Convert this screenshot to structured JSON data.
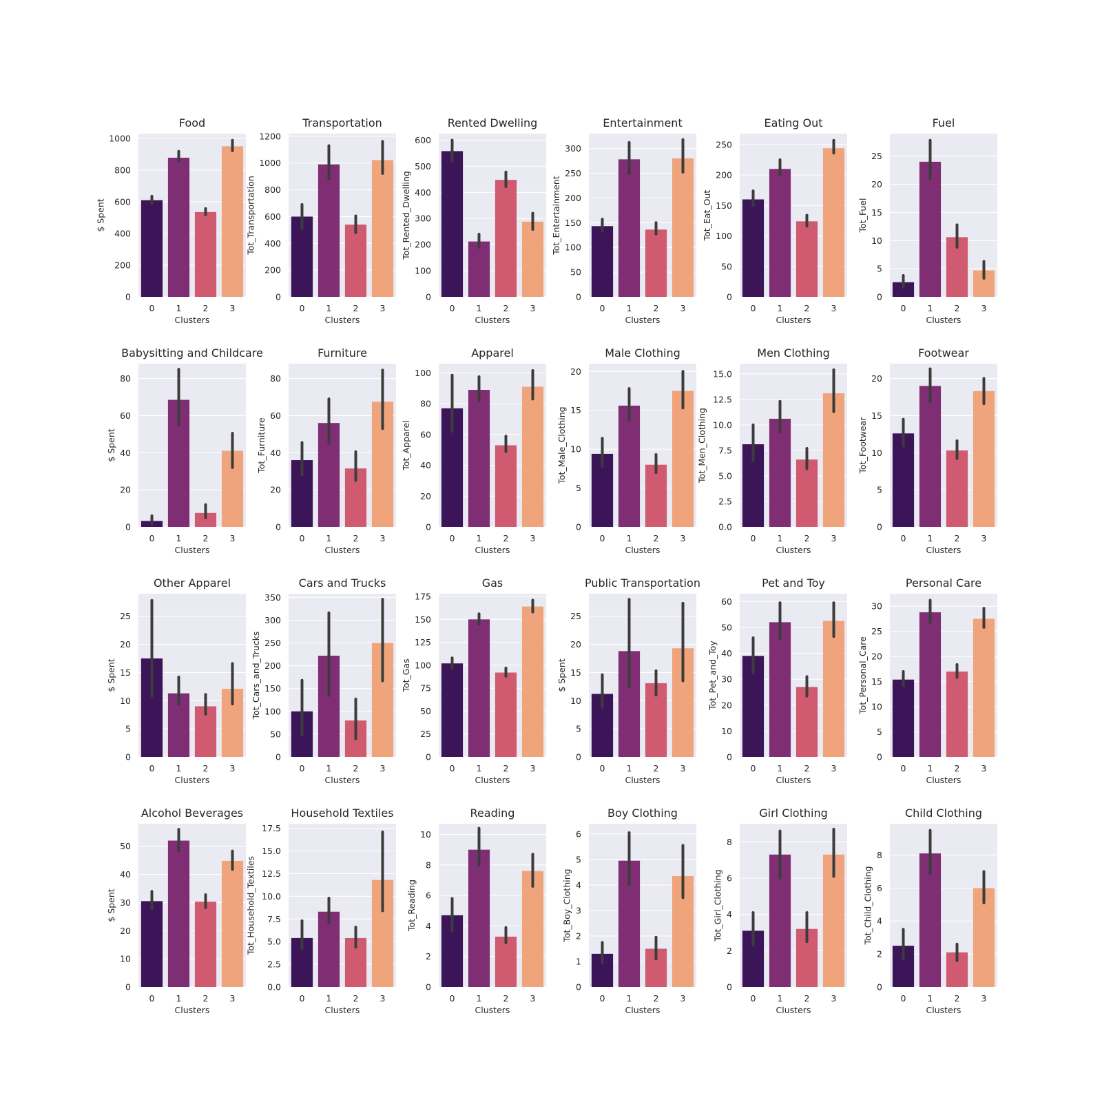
{
  "colors": [
    "#3b1558",
    "#7f2e73",
    "#d05a70",
    "#efa47b"
  ],
  "chart_data": [
    {
      "type": "bar",
      "title": "Food",
      "xlabel": "Clusters",
      "ylabel": "$ Spent",
      "categories": [
        "0",
        "1",
        "2",
        "3"
      ],
      "values": [
        610,
        878,
        535,
        950
      ],
      "errors": [
        [
          588,
          635
        ],
        [
          858,
          918
        ],
        [
          518,
          557
        ],
        [
          922,
          988
        ]
      ],
      "ylim": [
        0,
        1030
      ],
      "yticks": [
        "0",
        "200",
        "400",
        "600",
        "800",
        "1000"
      ]
    },
    {
      "type": "bar",
      "title": "Transportation",
      "xlabel": "Clusters",
      "ylabel": "Tot_Transportation",
      "categories": [
        "0",
        "1",
        "2",
        "3"
      ],
      "values": [
        600,
        990,
        540,
        1022
      ],
      "errors": [
        [
          508,
          690
        ],
        [
          882,
          1130
        ],
        [
          480,
          605
        ],
        [
          922,
          1162
        ]
      ],
      "ylim": [
        0,
        1220
      ],
      "yticks": [
        "0",
        "200",
        "400",
        "600",
        "800",
        "1000",
        "1200"
      ]
    },
    {
      "type": "bar",
      "title": "Rented Dwelling",
      "xlabel": "Clusters",
      "ylabel": "Tot_Rented_Dwelling",
      "categories": [
        "0",
        "1",
        "2",
        "3"
      ],
      "values": [
        558,
        212,
        448,
        288
      ],
      "errors": [
        [
          520,
          600
        ],
        [
          190,
          240
        ],
        [
          422,
          478
        ],
        [
          258,
          320
        ]
      ],
      "ylim": [
        0,
        625
      ],
      "yticks": [
        "0",
        "100",
        "200",
        "300",
        "400",
        "500",
        "600"
      ]
    },
    {
      "type": "bar",
      "title": "Entertainment",
      "xlabel": "Clusters",
      "ylabel": "Tot_Entertainment",
      "categories": [
        "0",
        "1",
        "2",
        "3"
      ],
      "values": [
        143,
        278,
        136,
        280
      ],
      "errors": [
        [
          133,
          157
        ],
        [
          250,
          312
        ],
        [
          127,
          150
        ],
        [
          252,
          318
        ]
      ],
      "ylim": [
        0,
        330
      ],
      "yticks": [
        "0",
        "50",
        "100",
        "150",
        "200",
        "250",
        "300"
      ]
    },
    {
      "type": "bar",
      "title": "Eating Out",
      "xlabel": "Clusters",
      "ylabel": "Tot_Eat_Out",
      "categories": [
        "0",
        "1",
        "2",
        "3"
      ],
      "values": [
        160,
        210,
        124,
        244
      ],
      "errors": [
        [
          150,
          174
        ],
        [
          200,
          225
        ],
        [
          116,
          134
        ],
        [
          236,
          257
        ]
      ],
      "ylim": [
        0,
        268
      ],
      "yticks": [
        "0",
        "50",
        "100",
        "150",
        "200",
        "250"
      ]
    },
    {
      "type": "bar",
      "title": "Fuel",
      "xlabel": "Clusters",
      "ylabel": "Tot_Fuel",
      "categories": [
        "0",
        "1",
        "2",
        "3"
      ],
      "values": [
        2.6,
        24.0,
        10.6,
        4.7
      ],
      "errors": [
        [
          1.7,
          3.8
        ],
        [
          21.0,
          27.8
        ],
        [
          8.8,
          12.8
        ],
        [
          3.3,
          6.3
        ]
      ],
      "ylim": [
        0,
        29
      ],
      "yticks": [
        "0",
        "5",
        "10",
        "15",
        "20",
        "25"
      ]
    },
    {
      "type": "bar",
      "title": "Babysitting and Childcare",
      "xlabel": "Clusters",
      "ylabel": "$ Spent",
      "categories": [
        "0",
        "1",
        "2",
        "3"
      ],
      "values": [
        3.2,
        68.5,
        7.5,
        41
      ],
      "errors": [
        [
          1.5,
          6.0
        ],
        [
          55,
          85
        ],
        [
          5,
          12
        ],
        [
          32,
          50.5
        ]
      ],
      "ylim": [
        0,
        88
      ],
      "yticks": [
        "0",
        "20",
        "40",
        "60",
        "80"
      ]
    },
    {
      "type": "bar",
      "title": "Furniture",
      "xlabel": "Clusters",
      "ylabel": "Tot_Furniture",
      "categories": [
        "0",
        "1",
        "2",
        "3"
      ],
      "values": [
        36,
        56,
        31.5,
        67.5
      ],
      "errors": [
        [
          28,
          45.5
        ],
        [
          45,
          69
        ],
        [
          25,
          40.5
        ],
        [
          53,
          84.5
        ]
      ],
      "ylim": [
        0,
        88
      ],
      "yticks": [
        "0",
        "20",
        "40",
        "60",
        "80"
      ]
    },
    {
      "type": "bar",
      "title": "Apparel",
      "xlabel": "Clusters",
      "ylabel": "Tot_Apparel",
      "categories": [
        "0",
        "1",
        "2",
        "3"
      ],
      "values": [
        77,
        89,
        53,
        91
      ],
      "errors": [
        [
          62,
          98.5
        ],
        [
          82,
          97.5
        ],
        [
          49,
          59
        ],
        [
          83,
          101.5
        ]
      ],
      "ylim": [
        0,
        106
      ],
      "yticks": [
        "0",
        "20",
        "40",
        "60",
        "80",
        "100"
      ]
    },
    {
      "type": "bar",
      "title": "Male Clothing",
      "xlabel": "Clusters",
      "ylabel": "Tot_Male_Clothing",
      "categories": [
        "0",
        "1",
        "2",
        "3"
      ],
      "values": [
        9.4,
        15.6,
        8.0,
        17.5
      ],
      "errors": [
        [
          7.8,
          11.4
        ],
        [
          13.8,
          17.8
        ],
        [
          7.0,
          9.3
        ],
        [
          15.3,
          20.0
        ]
      ],
      "ylim": [
        0,
        21
      ],
      "yticks": [
        "0",
        "5",
        "10",
        "15",
        "20"
      ]
    },
    {
      "type": "bar",
      "title": "Men Clothing",
      "xlabel": "Clusters",
      "ylabel": "Tot_Men_Clothing",
      "categories": [
        "0",
        "1",
        "2",
        "3"
      ],
      "values": [
        8.1,
        10.6,
        6.6,
        13.1
      ],
      "errors": [
        [
          6.5,
          10.0
        ],
        [
          9.3,
          12.3
        ],
        [
          5.7,
          7.7
        ],
        [
          11.3,
          15.4
        ]
      ],
      "ylim": [
        0,
        16
      ],
      "yticks": [
        "0.0",
        "2.5",
        "5.0",
        "7.5",
        "10.0",
        "12.5",
        "15.0"
      ]
    },
    {
      "type": "bar",
      "title": "Footwear",
      "xlabel": "Clusters",
      "ylabel": "Tot_Footwear",
      "categories": [
        "0",
        "1",
        "2",
        "3"
      ],
      "values": [
        12.6,
        19.0,
        10.3,
        18.3
      ],
      "errors": [
        [
          10.9,
          14.5
        ],
        [
          16.9,
          21.3
        ],
        [
          9.2,
          11.6
        ],
        [
          16.6,
          20.0
        ]
      ],
      "ylim": [
        0,
        22
      ],
      "yticks": [
        "0",
        "5",
        "10",
        "15",
        "20"
      ]
    },
    {
      "type": "bar",
      "title": "Other Apparel",
      "xlabel": "Clusters",
      "ylabel": "$ Spent",
      "categories": [
        "0",
        "1",
        "2",
        "3"
      ],
      "values": [
        17.5,
        11.3,
        9.0,
        12.1
      ],
      "errors": [
        [
          10.8,
          27.8
        ],
        [
          9.4,
          14.2
        ],
        [
          7.6,
          11.1
        ],
        [
          9.4,
          16.6
        ]
      ],
      "ylim": [
        0,
        29
      ],
      "yticks": [
        "0",
        "5",
        "10",
        "15",
        "20",
        "25"
      ]
    },
    {
      "type": "bar",
      "title": "Cars and Trucks",
      "xlabel": "Clusters",
      "ylabel": "Tot_Cars_and_Trucks",
      "categories": [
        "0",
        "1",
        "2",
        "3"
      ],
      "values": [
        100,
        222,
        80,
        250
      ],
      "errors": [
        [
          48,
          168
        ],
        [
          135,
          316
        ],
        [
          40,
          127
        ],
        [
          167,
          346
        ]
      ],
      "ylim": [
        0,
        358
      ],
      "yticks": [
        "0",
        "50",
        "100",
        "150",
        "200",
        "250",
        "300",
        "350"
      ]
    },
    {
      "type": "bar",
      "title": "Gas",
      "xlabel": "Clusters",
      "ylabel": "Tot_Gas",
      "categories": [
        "0",
        "1",
        "2",
        "3"
      ],
      "values": [
        102,
        150,
        92,
        164
      ],
      "errors": [
        [
          97,
          108
        ],
        [
          145,
          156
        ],
        [
          88,
          97
        ],
        [
          158,
          171
        ]
      ],
      "ylim": [
        0,
        178
      ],
      "yticks": [
        "0",
        "25",
        "50",
        "75",
        "100",
        "125",
        "150",
        "175"
      ]
    },
    {
      "type": "bar",
      "title": "Public Transportation",
      "xlabel": "Clusters",
      "ylabel": "$ Spent",
      "categories": [
        "0",
        "1",
        "2",
        "3"
      ],
      "values": [
        11.2,
        18.8,
        13.1,
        19.3
      ],
      "errors": [
        [
          8.8,
          14.6
        ],
        [
          12.5,
          28.0
        ],
        [
          11.0,
          15.3
        ],
        [
          13.5,
          27.3
        ]
      ],
      "ylim": [
        0,
        29
      ],
      "yticks": [
        "0",
        "5",
        "10",
        "15",
        "20",
        "25"
      ]
    },
    {
      "type": "bar",
      "title": "Pet and Toy",
      "xlabel": "Clusters",
      "ylabel": "Tot_Pet_and_Toy",
      "categories": [
        "0",
        "1",
        "2",
        "3"
      ],
      "values": [
        39,
        52,
        27,
        52.5
      ],
      "errors": [
        [
          32.5,
          46
        ],
        [
          45.5,
          59.5
        ],
        [
          23.5,
          31
        ],
        [
          46.5,
          59.5
        ]
      ],
      "ylim": [
        0,
        63
      ],
      "yticks": [
        "0",
        "10",
        "20",
        "30",
        "40",
        "50",
        "60"
      ]
    },
    {
      "type": "bar",
      "title": "Personal Care",
      "xlabel": "Clusters",
      "ylabel": "Tot_Personal_Care",
      "categories": [
        "0",
        "1",
        "2",
        "3"
      ],
      "values": [
        15.4,
        28.8,
        17.0,
        27.5
      ],
      "errors": [
        [
          14.2,
          17.0
        ],
        [
          26.8,
          31.2
        ],
        [
          15.8,
          18.4
        ],
        [
          25.8,
          29.6
        ]
      ],
      "ylim": [
        0,
        32.5
      ],
      "yticks": [
        "0",
        "5",
        "10",
        "15",
        "20",
        "25",
        "30"
      ]
    },
    {
      "type": "bar",
      "title": "Alcohol Beverages",
      "xlabel": "Clusters",
      "ylabel": "$ Spent",
      "categories": [
        "0",
        "1",
        "2",
        "3"
      ],
      "values": [
        30.5,
        52,
        30.3,
        44.8
      ],
      "errors": [
        [
          27.8,
          34
        ],
        [
          48.5,
          56
        ],
        [
          28.2,
          32.8
        ],
        [
          41.8,
          48.3
        ]
      ],
      "ylim": [
        0,
        58
      ],
      "yticks": [
        "0",
        "10",
        "20",
        "30",
        "40",
        "50"
      ]
    },
    {
      "type": "bar",
      "title": "Household Textiles",
      "xlabel": "Clusters",
      "ylabel": "Tot_Household_Textiles",
      "categories": [
        "0",
        "1",
        "2",
        "3"
      ],
      "values": [
        5.4,
        8.3,
        5.4,
        11.8
      ],
      "errors": [
        [
          4.2,
          7.3
        ],
        [
          7.1,
          9.8
        ],
        [
          4.4,
          6.6
        ],
        [
          8.4,
          17.1
        ]
      ],
      "ylim": [
        0,
        18
      ],
      "yticks": [
        "0.0",
        "2.5",
        "5.0",
        "7.5",
        "10.0",
        "12.5",
        "15.0",
        "17.5"
      ]
    },
    {
      "type": "bar",
      "title": "Reading",
      "xlabel": "Clusters",
      "ylabel": "Tot_Reading",
      "categories": [
        "0",
        "1",
        "2",
        "3"
      ],
      "values": [
        4.7,
        9.0,
        3.3,
        7.6
      ],
      "errors": [
        [
          3.7,
          5.8
        ],
        [
          8.0,
          10.4
        ],
        [
          2.9,
          3.9
        ],
        [
          6.6,
          8.7
        ]
      ],
      "ylim": [
        0,
        10.7
      ],
      "yticks": [
        "0",
        "2",
        "4",
        "6",
        "8",
        "10"
      ]
    },
    {
      "type": "bar",
      "title": "Boy Clothing",
      "xlabel": "Clusters",
      "ylabel": "Tot_Boy_Clothing",
      "categories": [
        "0",
        "1",
        "2",
        "3"
      ],
      "values": [
        1.3,
        4.95,
        1.5,
        4.35
      ],
      "errors": [
        [
          0.95,
          1.75
        ],
        [
          4.0,
          6.05
        ],
        [
          1.1,
          1.95
        ],
        [
          3.5,
          5.55
        ]
      ],
      "ylim": [
        0,
        6.4
      ],
      "yticks": [
        "0",
        "1",
        "2",
        "3",
        "4",
        "5",
        "6"
      ]
    },
    {
      "type": "bar",
      "title": "Girl Clothing",
      "xlabel": "Clusters",
      "ylabel": "Tot_Girl_Clothing",
      "categories": [
        "0",
        "1",
        "2",
        "3"
      ],
      "values": [
        3.1,
        7.3,
        3.2,
        7.3
      ],
      "errors": [
        [
          2.3,
          4.1
        ],
        [
          6.0,
          8.6
        ],
        [
          2.5,
          4.1
        ],
        [
          6.1,
          8.7
        ]
      ],
      "ylim": [
        0,
        9.0
      ],
      "yticks": [
        "0",
        "2",
        "4",
        "6",
        "8"
      ]
    },
    {
      "type": "bar",
      "title": "Child Clothing",
      "xlabel": "Clusters",
      "ylabel": "Tot_Child_Clothing",
      "categories": [
        "0",
        "1",
        "2",
        "3"
      ],
      "values": [
        2.5,
        8.1,
        2.1,
        6.0
      ],
      "errors": [
        [
          1.7,
          3.5
        ],
        [
          6.9,
          9.5
        ],
        [
          1.6,
          2.6
        ],
        [
          5.1,
          7.0
        ]
      ],
      "ylim": [
        0,
        9.9
      ],
      "yticks": [
        "0",
        "2",
        "4",
        "6",
        "8"
      ]
    }
  ]
}
